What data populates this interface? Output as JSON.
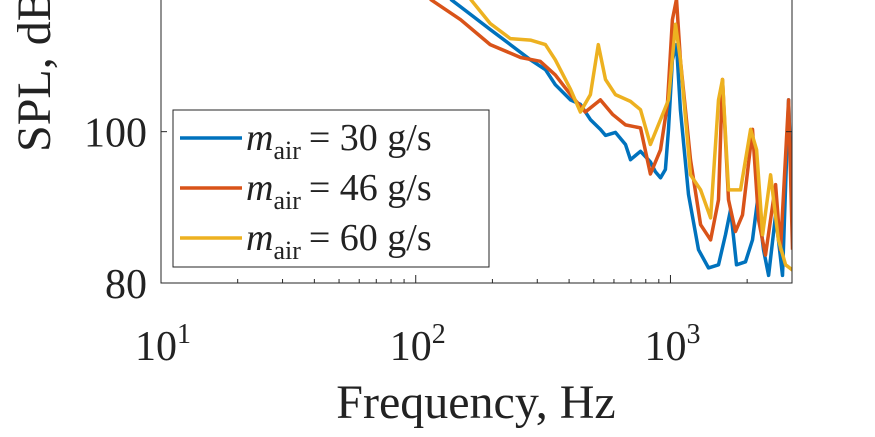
{
  "chart_data": {
    "type": "line",
    "title": "",
    "xlabel": "Frequency, Hz",
    "ylabel": "SPL, dB",
    "xscale": "log",
    "xlim": [
      10,
      3000
    ],
    "ylim": [
      80,
      117.4
    ],
    "xticks": [
      {
        "value": 10,
        "base": "10",
        "exp": "1"
      },
      {
        "value": 100,
        "base": "10",
        "exp": "2"
      },
      {
        "value": 1000,
        "base": "10",
        "exp": "3"
      }
    ],
    "yticks": [
      {
        "value": 80,
        "label": "80"
      },
      {
        "value": 100,
        "label": "100"
      }
    ],
    "grid": false,
    "legend_position": "lower-left",
    "series": [
      {
        "name": "m_air = 30 g/s",
        "symbol": "m",
        "sub": "air",
        "eq": "= 30 g/s",
        "color": "#0072BD",
        "points": [
          [
            137,
            117.5
          ],
          [
            164,
            115.5
          ],
          [
            196,
            113.5
          ],
          [
            235,
            111.5
          ],
          [
            282,
            109.5
          ],
          [
            323,
            108.2
          ],
          [
            353,
            106.2
          ],
          [
            405,
            104.2
          ],
          [
            443,
            103.6
          ],
          [
            485,
            101.6
          ],
          [
            531,
            100.3
          ],
          [
            556,
            99.5
          ],
          [
            608,
            99.9
          ],
          [
            666,
            98.3
          ],
          [
            697,
            96.3
          ],
          [
            763,
            97.4
          ],
          [
            834,
            96.0
          ],
          [
            873,
            94.7
          ],
          [
            914,
            93.9
          ],
          [
            955,
            95
          ],
          [
            982,
            100.3
          ],
          [
            1018,
            109.5
          ],
          [
            1056,
            111.5
          ],
          [
            1094,
            102.9
          ],
          [
            1177,
            91.7
          ],
          [
            1289,
            84.4
          ],
          [
            1410,
            82
          ],
          [
            1544,
            82.4
          ],
          [
            1645,
            86.4
          ],
          [
            1722,
            89.7
          ],
          [
            1817,
            82.4
          ],
          [
            1971,
            82.8
          ],
          [
            2100,
            85.7
          ],
          [
            2198,
            91
          ],
          [
            2319,
            84.4
          ],
          [
            2427,
            81
          ],
          [
            2587,
            89
          ],
          [
            2754,
            81
          ],
          [
            2909,
            104.2
          ],
          [
            3013,
            87
          ]
        ]
      },
      {
        "name": "m_air = 46 g/s",
        "symbol": "m",
        "sub": "air",
        "eq": "= 46 g/s",
        "color": "#D95319",
        "points": [
          [
            114,
            117.5
          ],
          [
            150,
            114.8
          ],
          [
            196,
            111.5
          ],
          [
            258,
            109.8
          ],
          [
            308,
            109.3
          ],
          [
            353,
            107.5
          ],
          [
            405,
            104.9
          ],
          [
            463,
            102.6
          ],
          [
            531,
            104.2
          ],
          [
            592,
            102.3
          ],
          [
            666,
            100.9
          ],
          [
            763,
            100.5
          ],
          [
            834,
            94.4
          ],
          [
            914,
            97.6
          ],
          [
            973,
            103.6
          ],
          [
            1018,
            114.8
          ],
          [
            1056,
            117.5
          ],
          [
            1094,
            109.5
          ],
          [
            1199,
            96.3
          ],
          [
            1313,
            87.7
          ],
          [
            1437,
            85.7
          ],
          [
            1544,
            91
          ],
          [
            1601,
            106.9
          ],
          [
            1690,
            91
          ],
          [
            1800,
            86.8
          ],
          [
            1918,
            89
          ],
          [
            2100,
            100.3
          ],
          [
            2219,
            88.3
          ],
          [
            2362,
            83.7
          ],
          [
            2587,
            93
          ],
          [
            2705,
            84.4
          ],
          [
            2909,
            104.2
          ],
          [
            3013,
            84.4
          ]
        ]
      },
      {
        "name": "m_air = 60 g/s",
        "symbol": "m",
        "sub": "air",
        "eq": "= 60 g/s",
        "color": "#EDB120",
        "points": [
          [
            164,
            117.5
          ],
          [
            196,
            114.3
          ],
          [
            235,
            112.3
          ],
          [
            282,
            112.1
          ],
          [
            323,
            111.5
          ],
          [
            353,
            109.5
          ],
          [
            405,
            105.6
          ],
          [
            443,
            102.6
          ],
          [
            485,
            104.9
          ],
          [
            521,
            111.5
          ],
          [
            556,
            106.9
          ],
          [
            608,
            104.9
          ],
          [
            697,
            104
          ],
          [
            763,
            102.9
          ],
          [
            834,
            98.3
          ],
          [
            914,
            101.6
          ],
          [
            982,
            104.2
          ],
          [
            1047,
            114.2
          ],
          [
            1094,
            109.5
          ],
          [
            1199,
            94.3
          ],
          [
            1313,
            92.3
          ],
          [
            1437,
            88.6
          ],
          [
            1544,
            104.2
          ],
          [
            1601,
            106.9
          ],
          [
            1690,
            92.3
          ],
          [
            1884,
            92.3
          ],
          [
            2064,
            100.3
          ],
          [
            2178,
            97.6
          ],
          [
            2300,
            86.4
          ],
          [
            2472,
            94.3
          ],
          [
            2654,
            85.7
          ],
          [
            2832,
            82.4
          ],
          [
            3013,
            81.7
          ]
        ]
      }
    ]
  }
}
